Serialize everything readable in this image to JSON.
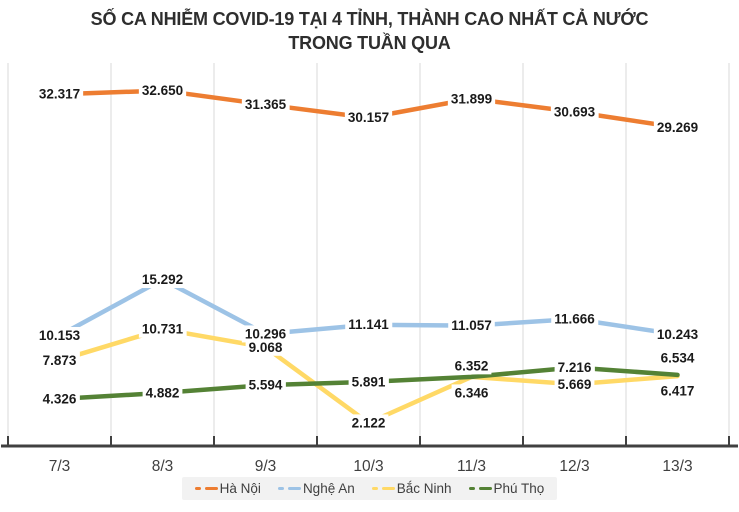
{
  "title": {
    "line1": "SỐ CA NHIỄM COVID-19 TẠI 4 TỈNH, THÀNH CAO NHẤT CẢ NƯỚC",
    "line2": "TRONG TUẦN QUA"
  },
  "chart_data": {
    "type": "line",
    "categories": [
      "7/3",
      "8/3",
      "9/3",
      "10/3",
      "11/3",
      "12/3",
      "13/3"
    ],
    "series": [
      {
        "name": "Hà Nội",
        "color": "#ED7D31",
        "values": [
          32317,
          32650,
          31365,
          30157,
          31899,
          30693,
          29269
        ],
        "labels": [
          "32.317",
          "32.650",
          "31.365",
          "30.157",
          "31.899",
          "30.693",
          "29.269"
        ],
        "label_offsets": [
          [
            0,
            0
          ],
          [
            0,
            0
          ],
          [
            0,
            0
          ],
          [
            0,
            0
          ],
          [
            0,
            0
          ],
          [
            0,
            0
          ],
          [
            0,
            0
          ]
        ]
      },
      {
        "name": "Nghệ An",
        "color": "#9DC3E6",
        "values": [
          10153,
          15292,
          10296,
          11141,
          11057,
          11666,
          10243
        ],
        "labels": [
          "10.153",
          "15.292",
          "10.296",
          "11.141",
          "11.057",
          "11.666",
          "10.243"
        ],
        "label_offsets": [
          [
            0,
            0
          ],
          [
            0,
            0
          ],
          [
            0,
            0
          ],
          [
            0,
            0
          ],
          [
            0,
            0
          ],
          [
            0,
            0
          ],
          [
            0,
            0
          ]
        ]
      },
      {
        "name": "Bắc Ninh",
        "color": "#FFD966",
        "values": [
          7873,
          10731,
          9068,
          2122,
          6346,
          5669,
          6417
        ],
        "labels": [
          "7.873",
          "10.731",
          "9.068",
          "2.122",
          "6.346",
          "5.669",
          "6.417"
        ],
        "label_offsets": [
          [
            0,
            0
          ],
          [
            0,
            0
          ],
          [
            0,
            0
          ],
          [
            0,
            0
          ],
          [
            0,
            16
          ],
          [
            0,
            0
          ],
          [
            0,
            15
          ]
        ]
      },
      {
        "name": "Phú Thọ",
        "color": "#548235",
        "values": [
          4326,
          4882,
          5594,
          5891,
          6352,
          7216,
          6534
        ],
        "labels": [
          "4.326",
          "4.882",
          "5.594",
          "5.891",
          "6.352",
          "7.216",
          "6.534"
        ],
        "label_offsets": [
          [
            0,
            0
          ],
          [
            0,
            0
          ],
          [
            0,
            0
          ],
          [
            0,
            0
          ],
          [
            0,
            -11
          ],
          [
            0,
            0
          ],
          [
            0,
            -17
          ]
        ]
      }
    ],
    "ylim": [
      0,
      35000
    ],
    "xlabel": "",
    "ylabel": "",
    "grid": "vertical",
    "legend_position": "bottom",
    "style": {
      "grid_color": "#D9D9D9",
      "axis_color": "#404040",
      "tick_label_color": "#3F3F3F",
      "data_label_color": "#1A1A1A",
      "label_bg": "#FFFFFF",
      "legend_bg": "#F2F2F2",
      "legend_text_color": "#404040",
      "title_color": "#2E2E2E"
    }
  }
}
